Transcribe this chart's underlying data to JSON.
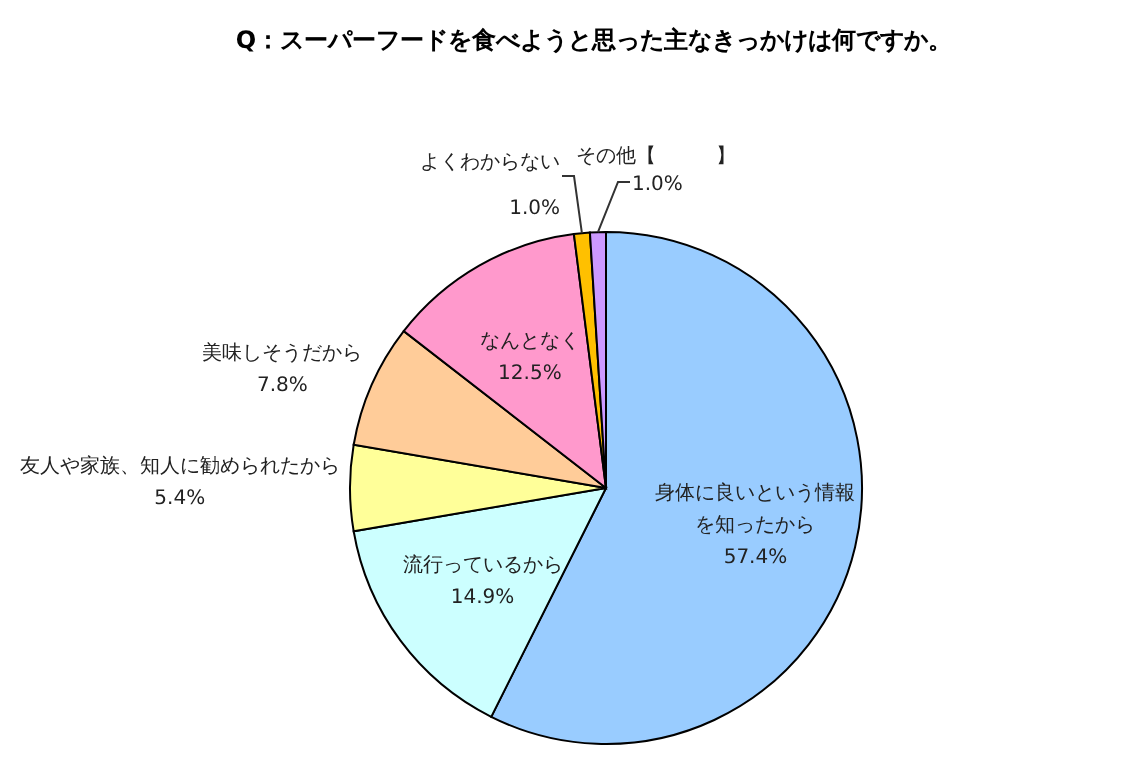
{
  "chart_data": {
    "type": "pie",
    "title": "Q：スーパーフードを食べようと思った主なきっかけは何ですか。",
    "categories": [
      "身体に良いという情報を知ったから",
      "流行っているから",
      "友人や家族、知人に勧められたから",
      "美味しそうだから",
      "なんとなく",
      "よくわからない",
      "その他【　　　】"
    ],
    "values": [
      57.4,
      14.9,
      5.4,
      7.8,
      12.5,
      1.0,
      1.0
    ],
    "colors": [
      "#99ccff",
      "#ccffff",
      "#ffff99",
      "#ffcc99",
      "#ff99cc",
      "#ffc000",
      "#cc99ff"
    ],
    "value_labels": [
      "57.4%",
      "14.9%",
      "5.4%",
      "7.8%",
      "12.5%",
      "1.0%",
      "1.0%"
    ]
  }
}
